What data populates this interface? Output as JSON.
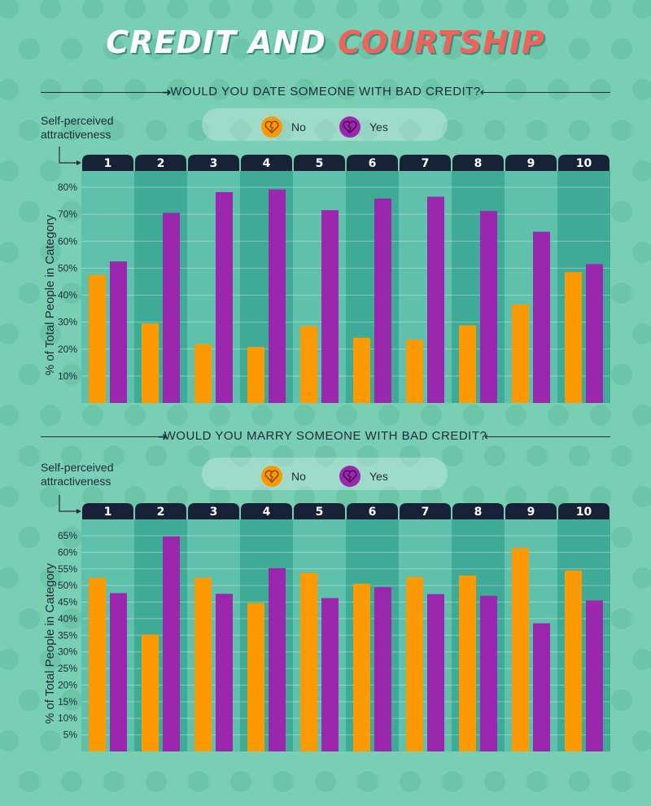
{
  "title": {
    "part1": "CREDIT AND ",
    "part2": "COURTSHIP"
  },
  "colors": {
    "no": "#ff9900",
    "yes": "#9b27af",
    "header": "#172238",
    "band_light": "#5fc0ac",
    "band_dark": "#3faa96"
  },
  "chart_data": [
    {
      "type": "bar",
      "title": "WOULD YOU DATE SOMEONE WITH BAD CREDIT?",
      "xlabel": "Self-perceived attractiveness",
      "ylabel": "% of Total People in Category",
      "categories": [
        "1",
        "2",
        "3",
        "4",
        "5",
        "6",
        "7",
        "8",
        "9",
        "10"
      ],
      "series": [
        {
          "name": "No",
          "values": [
            47.5,
            29.5,
            21.8,
            20.8,
            28.5,
            24.2,
            23.5,
            28.8,
            36.5,
            48.5
          ]
        },
        {
          "name": "Yes",
          "values": [
            52.5,
            70.5,
            78.2,
            79.2,
            71.5,
            75.8,
            76.5,
            71.2,
            63.5,
            51.5
          ]
        }
      ],
      "ylim": [
        0,
        80
      ],
      "yticks": [
        10,
        20,
        30,
        40,
        50,
        60,
        70,
        80
      ],
      "ytick_labels": [
        "10%",
        "20%",
        "30%",
        "40%",
        "50%",
        "60%",
        "70%",
        "80%"
      ],
      "legend": "top-center"
    },
    {
      "type": "bar",
      "title": "WOULD YOU MARRY SOMEONE WITH BAD CREDIT?",
      "xlabel": "Self-perceived attractiveness",
      "ylabel": "% of Total People in Category",
      "categories": [
        "1",
        "2",
        "3",
        "4",
        "5",
        "6",
        "7",
        "8",
        "9",
        "10"
      ],
      "series": [
        {
          "name": "No",
          "values": [
            52.3,
            35.2,
            52.3,
            44.7,
            53.8,
            50.5,
            52.5,
            53.0,
            61.3,
            54.5
          ]
        },
        {
          "name": "Yes",
          "values": [
            47.7,
            64.8,
            47.5,
            55.2,
            46.2,
            49.5,
            47.4,
            46.9,
            38.6,
            45.5
          ]
        }
      ],
      "ylim": [
        0,
        65
      ],
      "yticks": [
        5,
        10,
        15,
        20,
        25,
        30,
        35,
        40,
        45,
        50,
        55,
        60,
        65
      ],
      "ytick_labels": [
        "5%",
        "10%",
        "15%",
        "20%",
        "25%",
        "30%",
        "35%",
        "40%",
        "45%",
        "50%",
        "55%",
        "60%",
        "65%"
      ],
      "legend": "top-center"
    }
  ],
  "legend": {
    "no_label": "No",
    "yes_label": "Yes"
  },
  "icons": {
    "legend_no": "broken-heart-icon",
    "legend_yes": "broken-heart-icon",
    "background": "dollar-heart-pattern"
  }
}
